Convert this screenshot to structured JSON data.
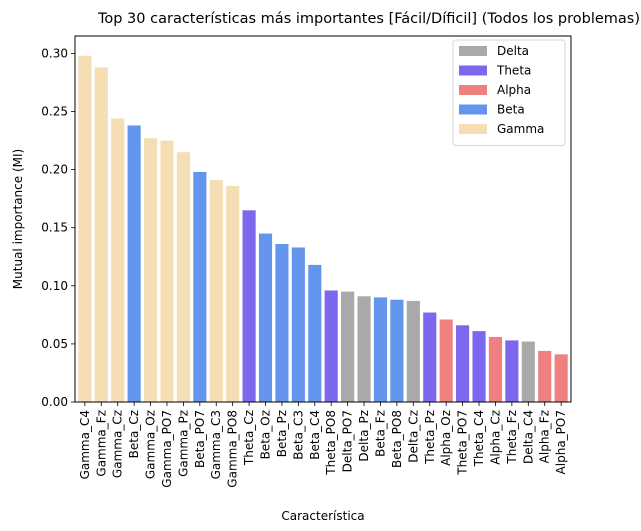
{
  "chart_data": {
    "type": "bar",
    "title": "Top 30 características más importantes [Fácil/Díficil] (Todos los problemas)",
    "xlabel": "Característica",
    "ylabel": "Mutual importance (MI)",
    "ylim": [
      0,
      0.315
    ],
    "yticks": [
      "0.00",
      "0.05",
      "0.10",
      "0.15",
      "0.20",
      "0.25",
      "0.30"
    ],
    "yticks_values": [
      0,
      0.05,
      0.1,
      0.15,
      0.2,
      0.25,
      0.3
    ],
    "grid": false,
    "legend_position": "top-right",
    "bands": [
      {
        "name": "Delta",
        "color": "#a9a9a9"
      },
      {
        "name": "Theta",
        "color": "#7b68ee"
      },
      {
        "name": "Alpha",
        "color": "#f08080"
      },
      {
        "name": "Beta",
        "color": "#6495ed"
      },
      {
        "name": "Gamma",
        "color": "#f5deb3"
      }
    ],
    "categories": [
      "Gamma_C4",
      "Gamma_Fz",
      "Gamma_Cz",
      "Beta_Cz",
      "Gamma_Oz",
      "Gamma_PO7",
      "Gamma_Pz",
      "Beta_PO7",
      "Gamma_C3",
      "Gamma_PO8",
      "Theta_Cz",
      "Beta_Oz",
      "Beta_Pz",
      "Beta_C3",
      "Beta_C4",
      "Theta_PO8",
      "Delta_PO7",
      "Delta_Pz",
      "Beta_Fz",
      "Beta_PO8",
      "Delta_Cz",
      "Theta_Pz",
      "Alpha_Oz",
      "Theta_PO7",
      "Theta_C4",
      "Alpha_Cz",
      "Theta_Fz",
      "Delta_C4",
      "Alpha_Fz",
      "Alpha_PO7"
    ],
    "band_of_bar": [
      "Gamma",
      "Gamma",
      "Gamma",
      "Beta",
      "Gamma",
      "Gamma",
      "Gamma",
      "Beta",
      "Gamma",
      "Gamma",
      "Theta",
      "Beta",
      "Beta",
      "Beta",
      "Beta",
      "Theta",
      "Delta",
      "Delta",
      "Beta",
      "Beta",
      "Delta",
      "Theta",
      "Alpha",
      "Theta",
      "Theta",
      "Alpha",
      "Theta",
      "Delta",
      "Alpha",
      "Alpha"
    ],
    "values": [
      0.298,
      0.288,
      0.244,
      0.238,
      0.227,
      0.225,
      0.215,
      0.198,
      0.191,
      0.186,
      0.165,
      0.145,
      0.136,
      0.133,
      0.118,
      0.096,
      0.095,
      0.091,
      0.09,
      0.088,
      0.087,
      0.077,
      0.071,
      0.066,
      0.061,
      0.056,
      0.053,
      0.052,
      0.044,
      0.041
    ]
  }
}
